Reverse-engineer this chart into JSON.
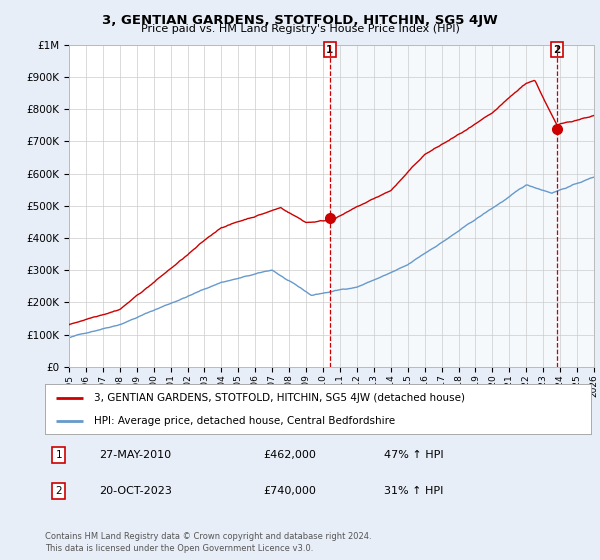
{
  "title": "3, GENTIAN GARDENS, STOTFOLD, HITCHIN, SG5 4JW",
  "subtitle": "Price paid vs. HM Land Registry's House Price Index (HPI)",
  "legend_line1": "3, GENTIAN GARDENS, STOTFOLD, HITCHIN, SG5 4JW (detached house)",
  "legend_line2": "HPI: Average price, detached house, Central Bedfordshire",
  "footnote": "Contains HM Land Registry data © Crown copyright and database right 2024.\nThis data is licensed under the Open Government Licence v3.0.",
  "sale1_date": "27-MAY-2010",
  "sale1_price": "£462,000",
  "sale1_hpi": "47% ↑ HPI",
  "sale2_date": "20-OCT-2023",
  "sale2_price": "£740,000",
  "sale2_hpi": "31% ↑ HPI",
  "sale1_x": 2010.4,
  "sale1_y": 462000,
  "sale2_x": 2023.8,
  "sale2_y": 740000,
  "line_color_red": "#cc0000",
  "line_color_blue": "#6699cc",
  "vline_color": "#cc0000",
  "fig_bg": "#e8eef8",
  "plot_bg": "#ffffff",
  "shade_bg": "#dde8f5",
  "ylim": [
    0,
    1000000
  ],
  "xlim": [
    1995,
    2026
  ],
  "yticks": [
    0,
    100000,
    200000,
    300000,
    400000,
    500000,
    600000,
    700000,
    800000,
    900000,
    1000000
  ],
  "ytick_labels": [
    "£0",
    "£100K",
    "£200K",
    "£300K",
    "£400K",
    "£500K",
    "£600K",
    "£700K",
    "£800K",
    "£900K",
    "£1M"
  ],
  "xticks": [
    1995,
    1996,
    1997,
    1998,
    1999,
    2000,
    2001,
    2002,
    2003,
    2004,
    2005,
    2006,
    2007,
    2008,
    2009,
    2010,
    2011,
    2012,
    2013,
    2014,
    2015,
    2016,
    2017,
    2018,
    2019,
    2020,
    2021,
    2022,
    2023,
    2024,
    2025,
    2026
  ]
}
